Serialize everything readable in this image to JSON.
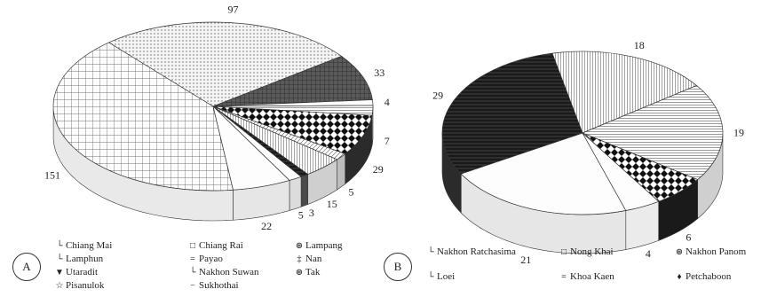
{
  "chart_data": [
    {
      "type": "pie",
      "panel": "A",
      "categories": [
        "Chiang Mai",
        "Chiang Rai",
        "Lampang",
        "Lamphun",
        "Payao",
        "Nan",
        "Utaradit",
        "Nakhon Suwan",
        "Tak",
        "Pisanulok",
        "Sukhothai"
      ],
      "values": [
        151,
        97,
        33,
        4,
        7,
        29,
        5,
        15,
        3,
        5,
        22
      ],
      "legend_symbols": [
        "└",
        "□",
        "⊛",
        "└",
        "=",
        "‡",
        "▼",
        "└",
        "⊛",
        "☆",
        "−"
      ],
      "legend_columns": [
        [
          "Chiang Mai",
          "Lamphun",
          "Utaradit",
          "Pisanulok"
        ],
        [
          "Chiang Rai",
          "Payao",
          "Nakhon Suwan",
          "Sukhothai"
        ],
        [
          "Lampang",
          "Nan",
          "Tak"
        ]
      ],
      "colors": [
        "#ffffff",
        "#e6e6e6",
        "#6f6f6f",
        "#bdbdbd",
        "#f2f2f2",
        "#1e1e1e",
        "#cfcfcf",
        "#eeeeee",
        "#555555",
        "#e0e0e0",
        "#fafafa"
      ],
      "view": "3d-tilted",
      "legend_position": "bottom"
    },
    {
      "type": "pie",
      "panel": "B",
      "categories": [
        "Nakhon Ratchasima",
        "Nong Khai",
        "Nakhon Panom",
        "Loei",
        "Khoa Kaen",
        "Petchaboon"
      ],
      "values": [
        21,
        29,
        18,
        19,
        6,
        4
      ],
      "legend_symbols": [
        "└",
        "□",
        "⊛",
        "└",
        "=",
        "♦"
      ],
      "legend_columns": [
        [
          "Nakhon Ratchasima",
          "Loei"
        ],
        [
          "Nong Khai",
          "Khoa Kaen"
        ],
        [
          "Nakhon Panom",
          "Petchaboon"
        ]
      ],
      "colors": [
        "#ffffff",
        "#3a3a3a",
        "#f0f0f0",
        "#e4e4e4",
        "#1a1a1a",
        "#fafafa"
      ],
      "view": "3d-tilted",
      "legend_position": "bottom"
    }
  ]
}
